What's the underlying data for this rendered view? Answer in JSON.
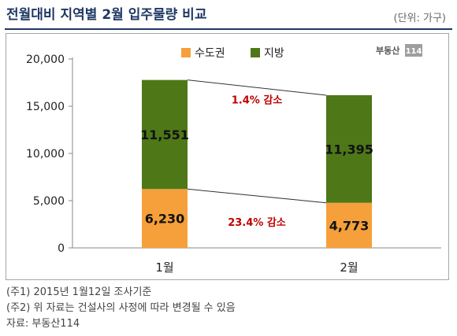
{
  "title": "전월대비 지역별 2월 입주물량 비교",
  "unit": "(단위: 가구)",
  "logo": {
    "text": "부동산",
    "badge": "114"
  },
  "colors": {
    "capital": "#f5a03a",
    "local": "#4e7818",
    "annotation": "#c00000",
    "title": "#1f3864"
  },
  "chart_data": {
    "type": "bar",
    "stacked": true,
    "categories": [
      "1월",
      "2월"
    ],
    "series": [
      {
        "name": "수도권",
        "values": [
          6230,
          4773
        ],
        "labels": [
          "6,230",
          "4,773"
        ]
      },
      {
        "name": "지방",
        "values": [
          11551,
          11395
        ],
        "labels": [
          "11,551",
          "11,395"
        ]
      }
    ],
    "ylim": [
      0,
      20000
    ],
    "yticks": [
      0,
      5000,
      10000,
      15000,
      20000
    ],
    "ytick_labels": [
      "0",
      "5,000",
      "10,000",
      "15,000",
      "20,000"
    ],
    "annotations": [
      "1.4% 감소",
      "23.4% 감소"
    ],
    "legend_position": "top"
  },
  "notes": [
    "(주1) 2015년 1월12일 조사기준",
    "(주2) 위 자료는 건설사의 사정에 따라 변경될 수 있음",
    "자료: 부동산114"
  ]
}
